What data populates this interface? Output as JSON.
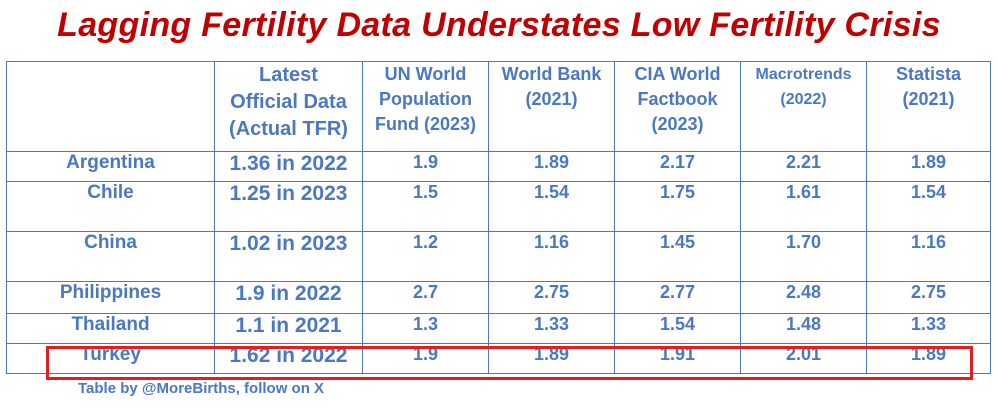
{
  "title": "Lagging Fertility Data Understates Low Fertility Crisis",
  "table": {
    "headers": [
      {
        "line1": "",
        "line2": "",
        "line3": ""
      },
      {
        "line1": "Latest",
        "line2": "Official Data",
        "line3": "(Actual TFR)"
      },
      {
        "line1": "UN World",
        "line2": "Population",
        "line3": "Fund (2023)"
      },
      {
        "line1": "World Bank",
        "line2": "(2021)",
        "line3": ""
      },
      {
        "line1": "CIA World",
        "line2": "Factbook",
        "line3": "(2023)"
      },
      {
        "line1": "Macrotrends",
        "line2": "(2022)",
        "line3": ""
      },
      {
        "line1": "Statista",
        "line2": "(2021)",
        "line3": ""
      }
    ],
    "rows": [
      {
        "country": "Argentina",
        "latest": "1.36 in 2022",
        "un": "1.9",
        "wb": "1.89",
        "cia": "2.17",
        "macro": "2.21",
        "statista": "1.89"
      },
      {
        "country": "Chile",
        "latest": "1.25 in 2023",
        "un": "1.5",
        "wb": "1.54",
        "cia": "1.75",
        "macro": "1.61",
        "statista": "1.54"
      },
      {
        "country": "China",
        "latest": "1.02 in 2023",
        "un": "1.2",
        "wb": "1.16",
        "cia": "1.45",
        "macro": "1.70",
        "statista": "1.16"
      },
      {
        "country": "Philippines",
        "latest": "1.9 in 2022",
        "un": "2.7",
        "wb": "2.75",
        "cia": "2.77",
        "macro": "2.48",
        "statista": "2.75"
      },
      {
        "country": "Thailand",
        "latest": "1.1 in 2021",
        "un": "1.3",
        "wb": "1.33",
        "cia": "1.54",
        "macro": "1.48",
        "statista": "1.33"
      },
      {
        "country": "Turkey",
        "latest": "1.62 in 2022",
        "un": "1.9",
        "wb": "1.89",
        "cia": "1.91",
        "macro": "2.01",
        "statista": "1.89"
      }
    ]
  },
  "highlighted_row": "Turkey",
  "colors": {
    "title": "#c00000",
    "country": "#c00000",
    "table_text": "#4a78c2",
    "border": "#4a78c2",
    "highlight": "#e02020"
  },
  "credit": "Table by @MoreBirths, follow on X"
}
